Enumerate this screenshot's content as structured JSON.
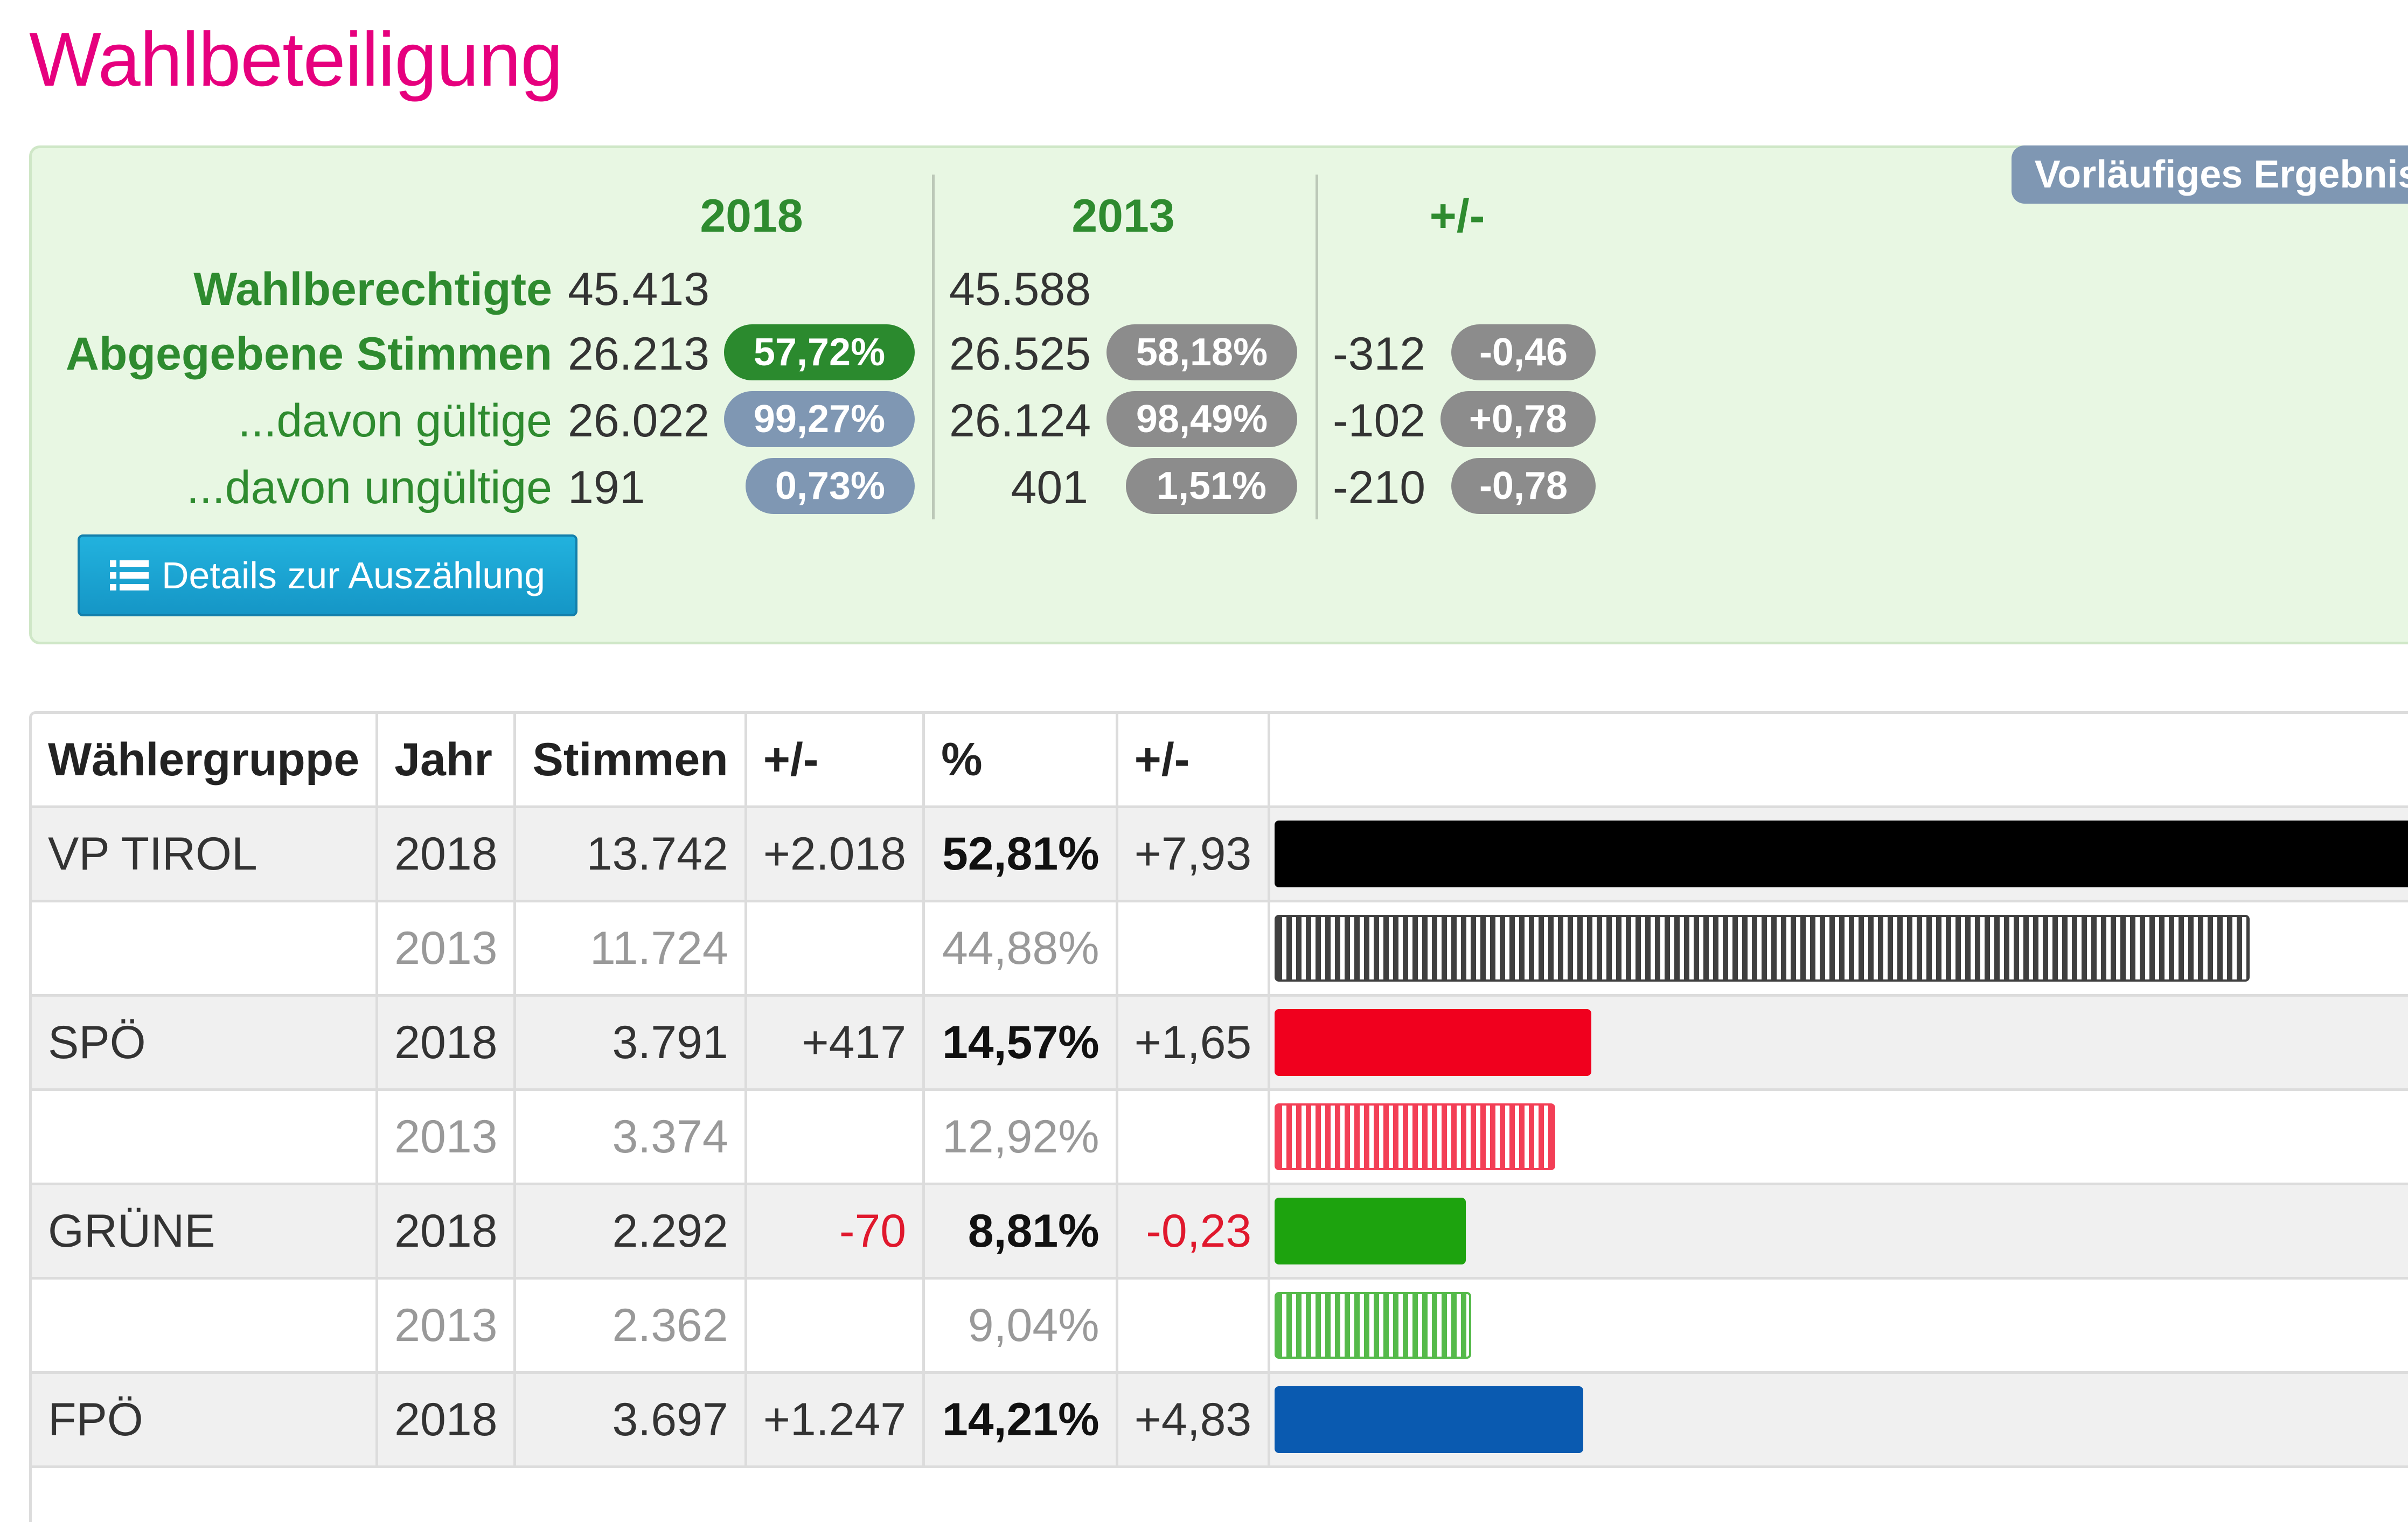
{
  "page": {
    "title": "Wahlbeteiligung"
  },
  "summary": {
    "badge": "Vorläufiges Ergebnis",
    "columns": [
      "2018",
      "2013",
      "+/-"
    ],
    "rows": [
      {
        "label": "Wahlberechtigte",
        "v2018": "45.413",
        "v2013": "45.588"
      },
      {
        "label": "Abgegebene Stimmen",
        "v2018": "26.213",
        "p2018": "57,72%",
        "v2013": "26.525",
        "p2013": "58,18%",
        "diff": "-312",
        "pdiff": "-0,46"
      },
      {
        "label": "...davon gültige",
        "v2018": "26.022",
        "p2018": "99,27%",
        "v2013": "26.124",
        "p2013": "98,49%",
        "diff": "-102",
        "pdiff": "+0,78"
      },
      {
        "label": "...davon ungültige",
        "v2018": "191",
        "p2018": "0,73%",
        "v2013": "401",
        "p2013": "1,51%",
        "diff": "-210",
        "pdiff": "-0,78"
      }
    ],
    "details_button": "Details zur Auszählung"
  },
  "colors": {
    "title": "#e6007e",
    "vp": "#000000",
    "spo": "#f0001e",
    "grune": "#1da30e",
    "fpo": "#0a5ab0"
  },
  "table": {
    "headers": [
      "Wählergruppe",
      "Jahr",
      "Stimmen",
      "+/-",
      "%",
      "+/-"
    ],
    "rows": [
      {
        "party": "VP TIROL",
        "year": "2018",
        "votes": "13.742",
        "diff": "+2.018",
        "pct": "52,81%",
        "pdiff": "+7,93",
        "share": 52.81,
        "color": "#000000",
        "hatch": false,
        "neg": false
      },
      {
        "party": "",
        "year": "2013",
        "votes": "11.724",
        "diff": "",
        "pct": "44,88%",
        "pdiff": "",
        "share": 44.88,
        "color": "#000000",
        "hatch": true,
        "neg": false
      },
      {
        "party": "SPÖ",
        "year": "2018",
        "votes": "3.791",
        "diff": "+417",
        "pct": "14,57%",
        "pdiff": "+1,65",
        "share": 14.57,
        "color": "#f0001e",
        "hatch": false,
        "neg": false
      },
      {
        "party": "",
        "year": "2013",
        "votes": "3.374",
        "diff": "",
        "pct": "12,92%",
        "pdiff": "",
        "share": 12.92,
        "color": "#f0001e",
        "hatch": true,
        "neg": false
      },
      {
        "party": "GRÜNE",
        "year": "2018",
        "votes": "2.292",
        "diff": "-70",
        "pct": "8,81%",
        "pdiff": "-0,23",
        "share": 8.81,
        "color": "#1da30e",
        "hatch": false,
        "neg": true
      },
      {
        "party": "",
        "year": "2013",
        "votes": "2.362",
        "diff": "",
        "pct": "9,04%",
        "pdiff": "",
        "share": 9.04,
        "color": "#1da30e",
        "hatch": true,
        "neg": false
      },
      {
        "party": "FPÖ",
        "year": "2018",
        "votes": "3.697",
        "diff": "+1.247",
        "pct": "14,21%",
        "pdiff": "+4,83",
        "share": 14.21,
        "color": "#0a5ab0",
        "hatch": false,
        "neg": false
      }
    ]
  }
}
